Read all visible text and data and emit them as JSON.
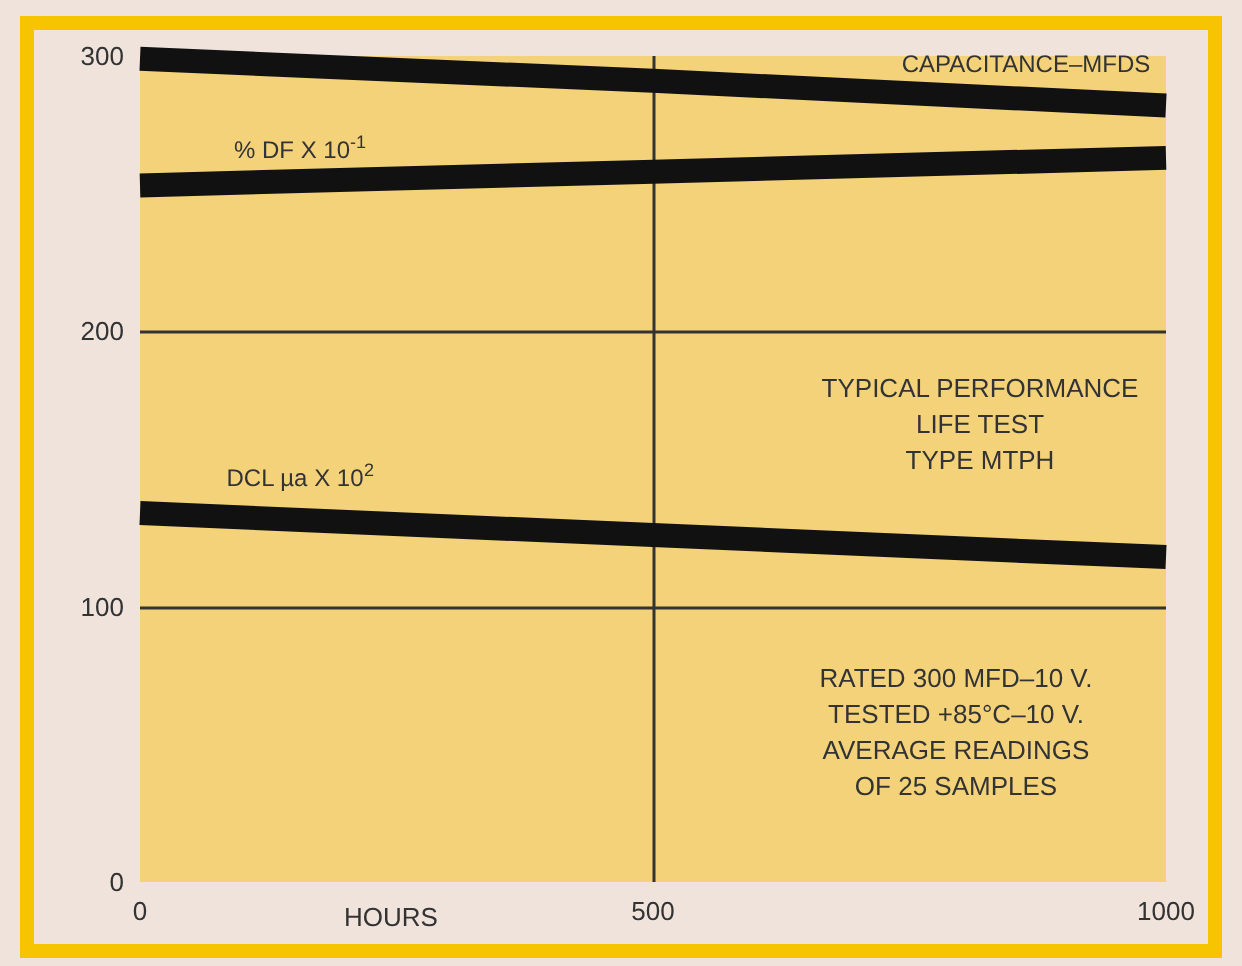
{
  "chart_data": {
    "type": "line",
    "xlabel": "HOURS",
    "x": [
      0,
      500,
      1000
    ],
    "series": [
      {
        "name": "CAPACITANCE–MFDS",
        "color": "#111111",
        "values": [
          299,
          291,
          282
        ]
      },
      {
        "name": "% DF X 10$^{-1}$",
        "color": "#111111",
        "values": [
          253,
          258,
          263
        ]
      },
      {
        "name": "DCL µa X 10$^{2}$",
        "color": "#111111",
        "values": [
          134,
          126,
          118
        ]
      }
    ],
    "xlim": [
      0,
      1000
    ],
    "xticks": [
      0,
      500,
      1000
    ],
    "ylim": [
      0,
      300
    ],
    "yticks": [
      0,
      100,
      200,
      300
    ],
    "grid": true,
    "legend": false,
    "marker": "none",
    "line_style": "solid",
    "annotations": [
      "TYPICAL PERFORMANCE\nLIFE TEST\nTYPE MTPH",
      "RATED 300 MFD–10 V.\nTESTED +85°C–10 V.\nAVERAGE READINGS\nOF 25 SAMPLES"
    ]
  }
}
